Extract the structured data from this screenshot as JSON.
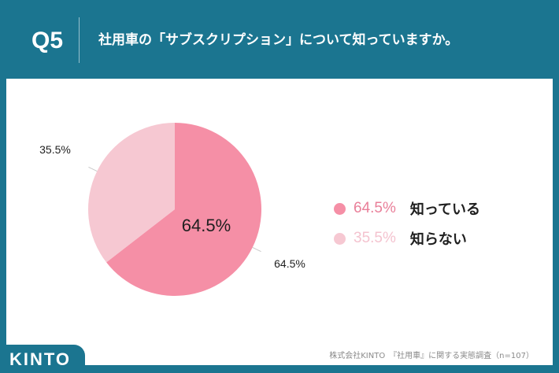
{
  "header": {
    "q_label": "Q5",
    "question": "社用車の「サブスクリプション」について知っていますか。"
  },
  "colors": {
    "brand": "#1b7590",
    "slice_known": "#f58fa6",
    "slice_unknown": "#f6c8d2",
    "legend_known_text": "#e97f99",
    "legend_unknown_text": "#f4c3cf"
  },
  "chart_data": {
    "type": "pie",
    "slices": [
      {
        "label": "知っている",
        "value": 64.5,
        "value_label": "64.5%"
      },
      {
        "label": "知らない",
        "value": 35.5,
        "value_label": "35.5%"
      }
    ],
    "center_label": "64.5%",
    "legend_position": "right"
  },
  "footer": {
    "source": "株式会社KINTO　『社用車』に関する実態調査（n=107）",
    "logo": "KINTO"
  }
}
